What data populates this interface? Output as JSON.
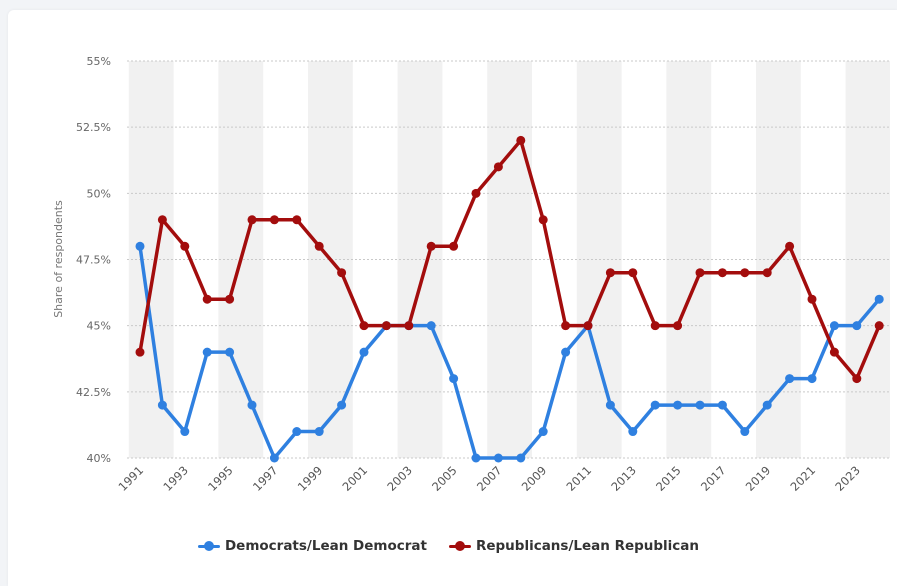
{
  "chart_data": {
    "type": "line",
    "ylabel": "Share of respondents",
    "xlabel": "",
    "ylim": [
      40,
      55
    ],
    "y_ticks": [
      "40%",
      "42.5%",
      "45%",
      "47.5%",
      "50%",
      "52.5%",
      "55%"
    ],
    "y_tick_values": [
      40,
      42.5,
      45,
      47.5,
      50,
      52.5,
      55
    ],
    "x": [
      1991,
      1992,
      1993,
      1994,
      1995,
      1996,
      1997,
      1998,
      1999,
      2000,
      2001,
      2002,
      2003,
      2004,
      2005,
      2006,
      2007,
      2008,
      2009,
      2010,
      2011,
      2012,
      2013,
      2014,
      2015,
      2016,
      2017,
      2018,
      2019,
      2020,
      2021,
      2022,
      2023,
      2024
    ],
    "x_tick_labels": [
      "1991",
      "1993",
      "1995",
      "1997",
      "1999",
      "2001",
      "2003",
      "2005",
      "2007",
      "2009",
      "2011",
      "2013",
      "2015",
      "2017",
      "2019",
      "2021",
      "2023"
    ],
    "grid": true,
    "legend_position": "bottom",
    "series": [
      {
        "name": "Democrats/Lean Democrat",
        "color": "#2f80e0",
        "values": [
          48,
          42,
          41,
          44,
          44,
          42,
          40,
          41,
          41,
          42,
          44,
          45,
          45,
          45,
          43,
          40,
          40,
          40,
          41,
          44,
          45,
          42,
          41,
          42,
          42,
          42,
          42,
          41,
          42,
          43,
          43,
          45,
          45,
          46
        ]
      },
      {
        "name": "Republicans/Lean Republican",
        "color": "#a30d0d",
        "values": [
          44,
          49,
          48,
          46,
          46,
          49,
          49,
          49,
          48,
          47,
          45,
          45,
          45,
          48,
          48,
          50,
          51,
          52,
          49,
          45,
          45,
          47,
          47,
          45,
          45,
          47,
          47,
          47,
          47,
          48,
          46,
          44,
          43,
          45
        ]
      }
    ]
  }
}
